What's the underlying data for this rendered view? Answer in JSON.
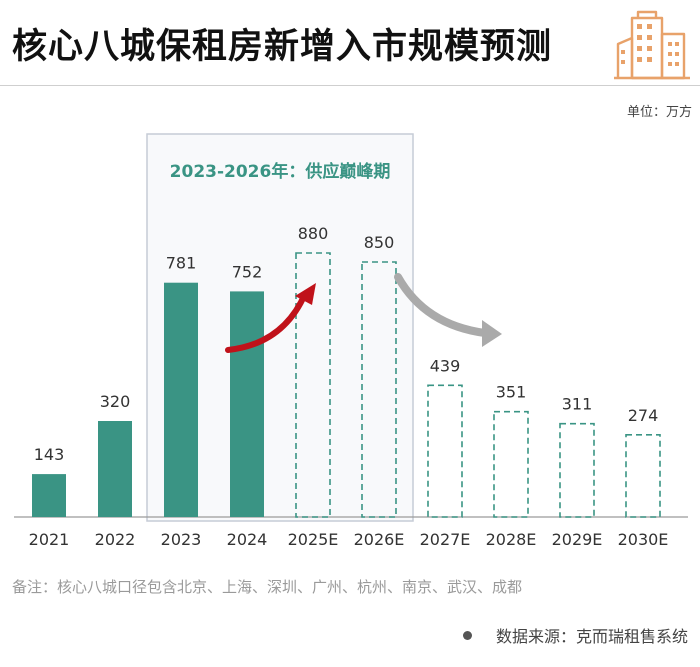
{
  "header": {
    "title": "核心八城保租房新增入市规模预测",
    "unit": "单位：万方",
    "logo_icon": "building-icon"
  },
  "chart_data": {
    "type": "bar",
    "categories": [
      "2021",
      "2022",
      "2023",
      "2024",
      "2025E",
      "2026E",
      "2027E",
      "2028E",
      "2029E",
      "2030E"
    ],
    "values": [
      143,
      320,
      781,
      752,
      880,
      850,
      439,
      351,
      311,
      274
    ],
    "forecast": [
      false,
      false,
      false,
      false,
      true,
      true,
      true,
      true,
      true,
      true
    ],
    "ylim": [
      0,
      1000
    ],
    "grid": false,
    "colors": {
      "actual": "#3a9484",
      "forecast_border": "#3a9484",
      "highlight_box": "#c6ccd6",
      "up_arrow": "#c0121a",
      "down_arrow": "#aaaaaa"
    },
    "annotation": {
      "text": "2023-2026年：供应巅峰期",
      "from_category": "2023",
      "to_category": "2026E"
    }
  },
  "footer": {
    "note": "备注：核心八城口径包含北京、上海、深圳、广州、杭州、南京、武汉、成都",
    "source": "数据来源：克而瑞租售系统"
  }
}
